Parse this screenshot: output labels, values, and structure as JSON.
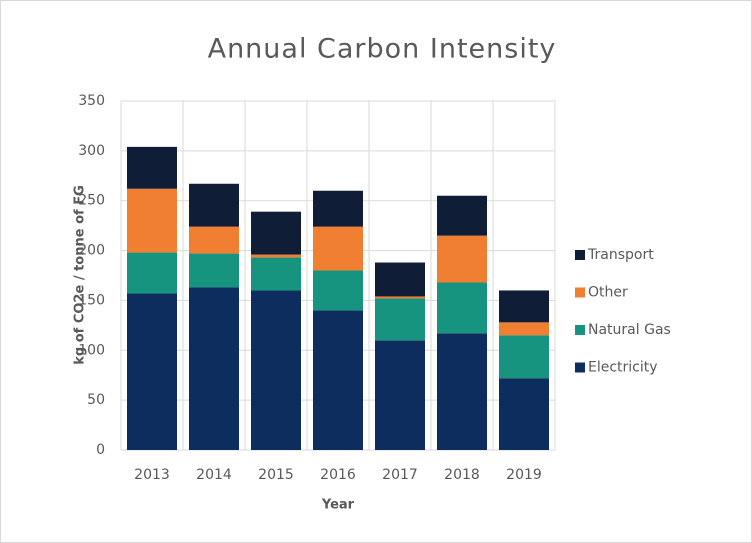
{
  "chart_data": {
    "type": "stacked_bar",
    "title": "Annual Carbon Intensity",
    "x_label": "Year",
    "y_label": "kg of CO2e / tonne of FG",
    "categories": [
      "2013",
      "2014",
      "2015",
      "2016",
      "2017",
      "2018",
      "2019"
    ],
    "series": [
      {
        "name": "Electricity",
        "color": "#0c2d5e",
        "values": [
          157,
          163,
          160,
          140,
          110,
          117,
          72
        ]
      },
      {
        "name": "Natural Gas",
        "color": "#17947f",
        "values": [
          41,
          34,
          33,
          40,
          42,
          51,
          43
        ]
      },
      {
        "name": "Other",
        "color": "#f07f32",
        "values": [
          64,
          27,
          3,
          44,
          2,
          47,
          13
        ]
      },
      {
        "name": "Transport",
        "color": "#0f1d36",
        "values": [
          42,
          43,
          43,
          36,
          34,
          40,
          32
        ]
      }
    ],
    "ylim": [
      0,
      350
    ],
    "yticks": [
      0,
      50,
      100,
      150,
      200,
      250,
      300,
      350
    ],
    "grid": true,
    "legend": "right"
  }
}
